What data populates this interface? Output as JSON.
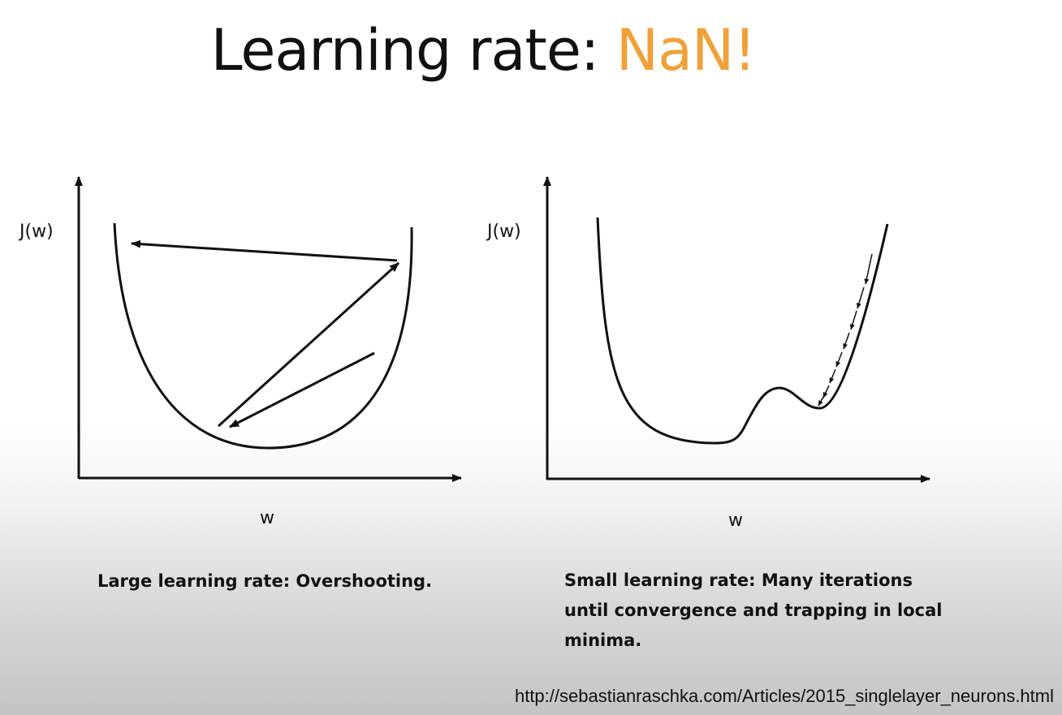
{
  "slide": {
    "title_prefix": "Learning rate: ",
    "title_accent": "NaN!",
    "accent_color": "#f0a13a"
  },
  "left_diagram": {
    "y_axis_label": "J(w)",
    "x_axis_label": "w",
    "caption": "Large learning rate: Overshooting."
  },
  "right_diagram": {
    "y_axis_label": "J(w)",
    "x_axis_label": "w",
    "caption": "Small learning rate: Many iterations until convergence and trapping in local minima."
  },
  "source_url": "http://sebastianraschka.com/Articles/2015_singlelayer_neurons.html"
}
